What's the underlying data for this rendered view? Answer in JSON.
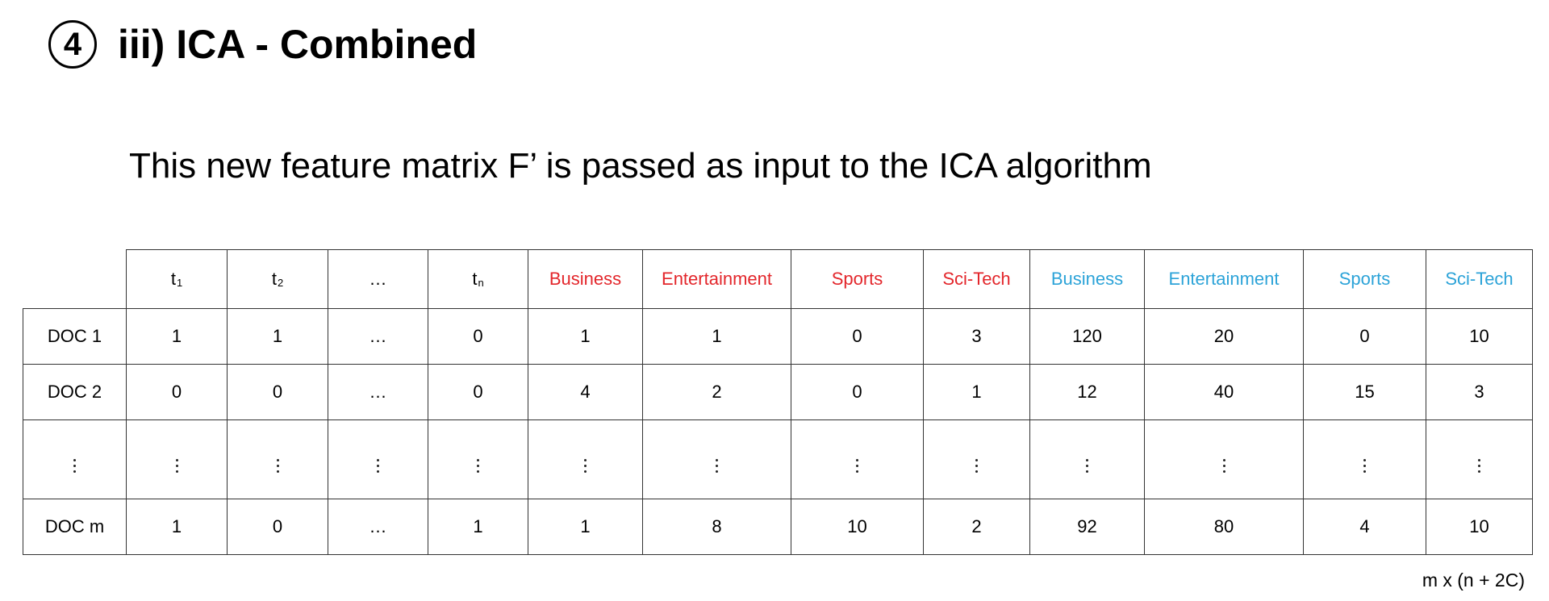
{
  "heading": {
    "step_number": "4",
    "title": "iii)  ICA - Combined"
  },
  "subtitle": "This new feature matrix F’ is passed as input to the ICA algorithm",
  "table": {
    "term_headers": [
      {
        "base": "t",
        "sub": "1"
      },
      {
        "base": "t",
        "sub": "2"
      },
      {
        "text": "…"
      },
      {
        "base": "t",
        "sub": "n"
      }
    ],
    "group1_headers": [
      "Business",
      "Entertainment",
      "Sports",
      "Sci-Tech"
    ],
    "group2_headers": [
      "Business",
      "Entertainment",
      "Sports",
      "Sci-Tech"
    ],
    "rows": [
      {
        "label": "DOC 1",
        "cells": [
          "1",
          "1",
          "…",
          "0",
          "1",
          "1",
          "0",
          "3",
          "120",
          "20",
          "0",
          "10"
        ]
      },
      {
        "label": "DOC 2",
        "cells": [
          "0",
          "0",
          "…",
          "0",
          "4",
          "2",
          "0",
          "1",
          "12",
          "40",
          "15",
          "3"
        ]
      },
      {
        "label": "DOC m",
        "cells": [
          "1",
          "0",
          "…",
          "1",
          "1",
          "8",
          "10",
          "2",
          "92",
          "80",
          "4",
          "10"
        ]
      }
    ],
    "colors": {
      "group1": "#e3262b",
      "group2": "#2ca3d8"
    }
  },
  "dimensions": "m x (n + 2C)"
}
